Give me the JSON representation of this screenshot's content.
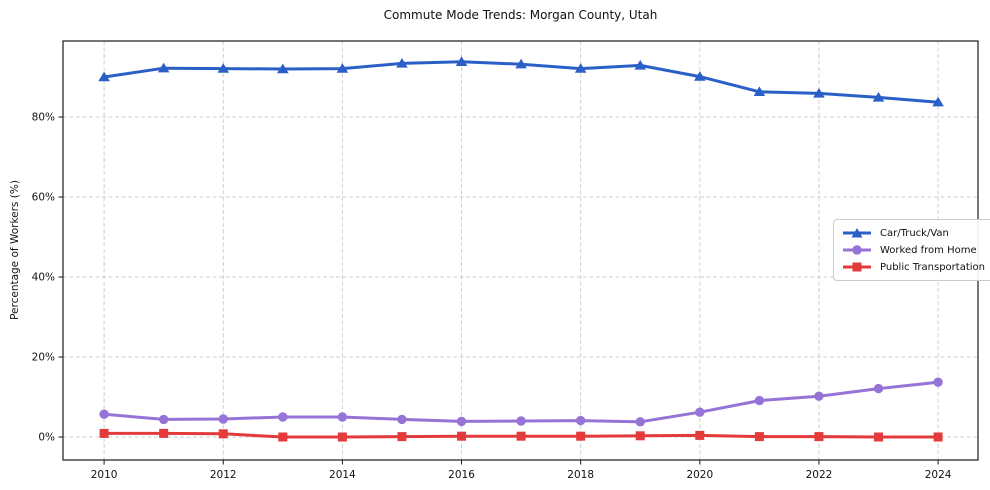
{
  "page": {
    "title": "Commute Mode Trends: Morgan County, Utah"
  },
  "chart_data": {
    "type": "line",
    "title": "Commute Mode Trends: Morgan County, Utah",
    "xlabel": "",
    "ylabel": "Percentage of Workers (%)",
    "x": [
      2010,
      2011,
      2012,
      2013,
      2014,
      2015,
      2016,
      2017,
      2018,
      2019,
      2020,
      2021,
      2022,
      2023,
      2024
    ],
    "series": [
      {
        "name": "Car/Truck/Van",
        "color": "#2b5fc8",
        "marker": "triangle",
        "values": [
          90.0,
          92.2,
          92.1,
          92.0,
          92.1,
          93.4,
          93.8,
          93.2,
          92.1,
          92.9,
          90.1,
          86.3,
          85.9,
          84.9,
          83.7
        ]
      },
      {
        "name": "Worked from Home",
        "color": "#9673d6",
        "marker": "circle",
        "values": [
          5.7,
          4.4,
          4.5,
          5.0,
          5.0,
          4.4,
          3.9,
          4.0,
          4.1,
          3.8,
          6.2,
          9.1,
          10.2,
          12.1,
          13.7
        ]
      },
      {
        "name": "Public Transportation",
        "color": "#e33b3b",
        "marker": "square",
        "values": [
          0.9,
          0.9,
          0.8,
          0.0,
          0.0,
          0.1,
          0.2,
          0.2,
          0.2,
          0.3,
          0.4,
          0.1,
          0.1,
          0.0,
          0.0
        ]
      }
    ],
    "xticks": [
      2010,
      2012,
      2014,
      2016,
      2018,
      2020,
      2022,
      2024
    ],
    "yticks": [
      0,
      20,
      40,
      60,
      80
    ],
    "ytick_labels": [
      "0%",
      "20%",
      "40%",
      "60%",
      "80%"
    ],
    "xlim": [
      2009.31,
      2024.67
    ],
    "ylim": [
      -5.75,
      99.0
    ],
    "grid": true,
    "grid_color": "#cfcfcf",
    "legend_position": "center right"
  }
}
